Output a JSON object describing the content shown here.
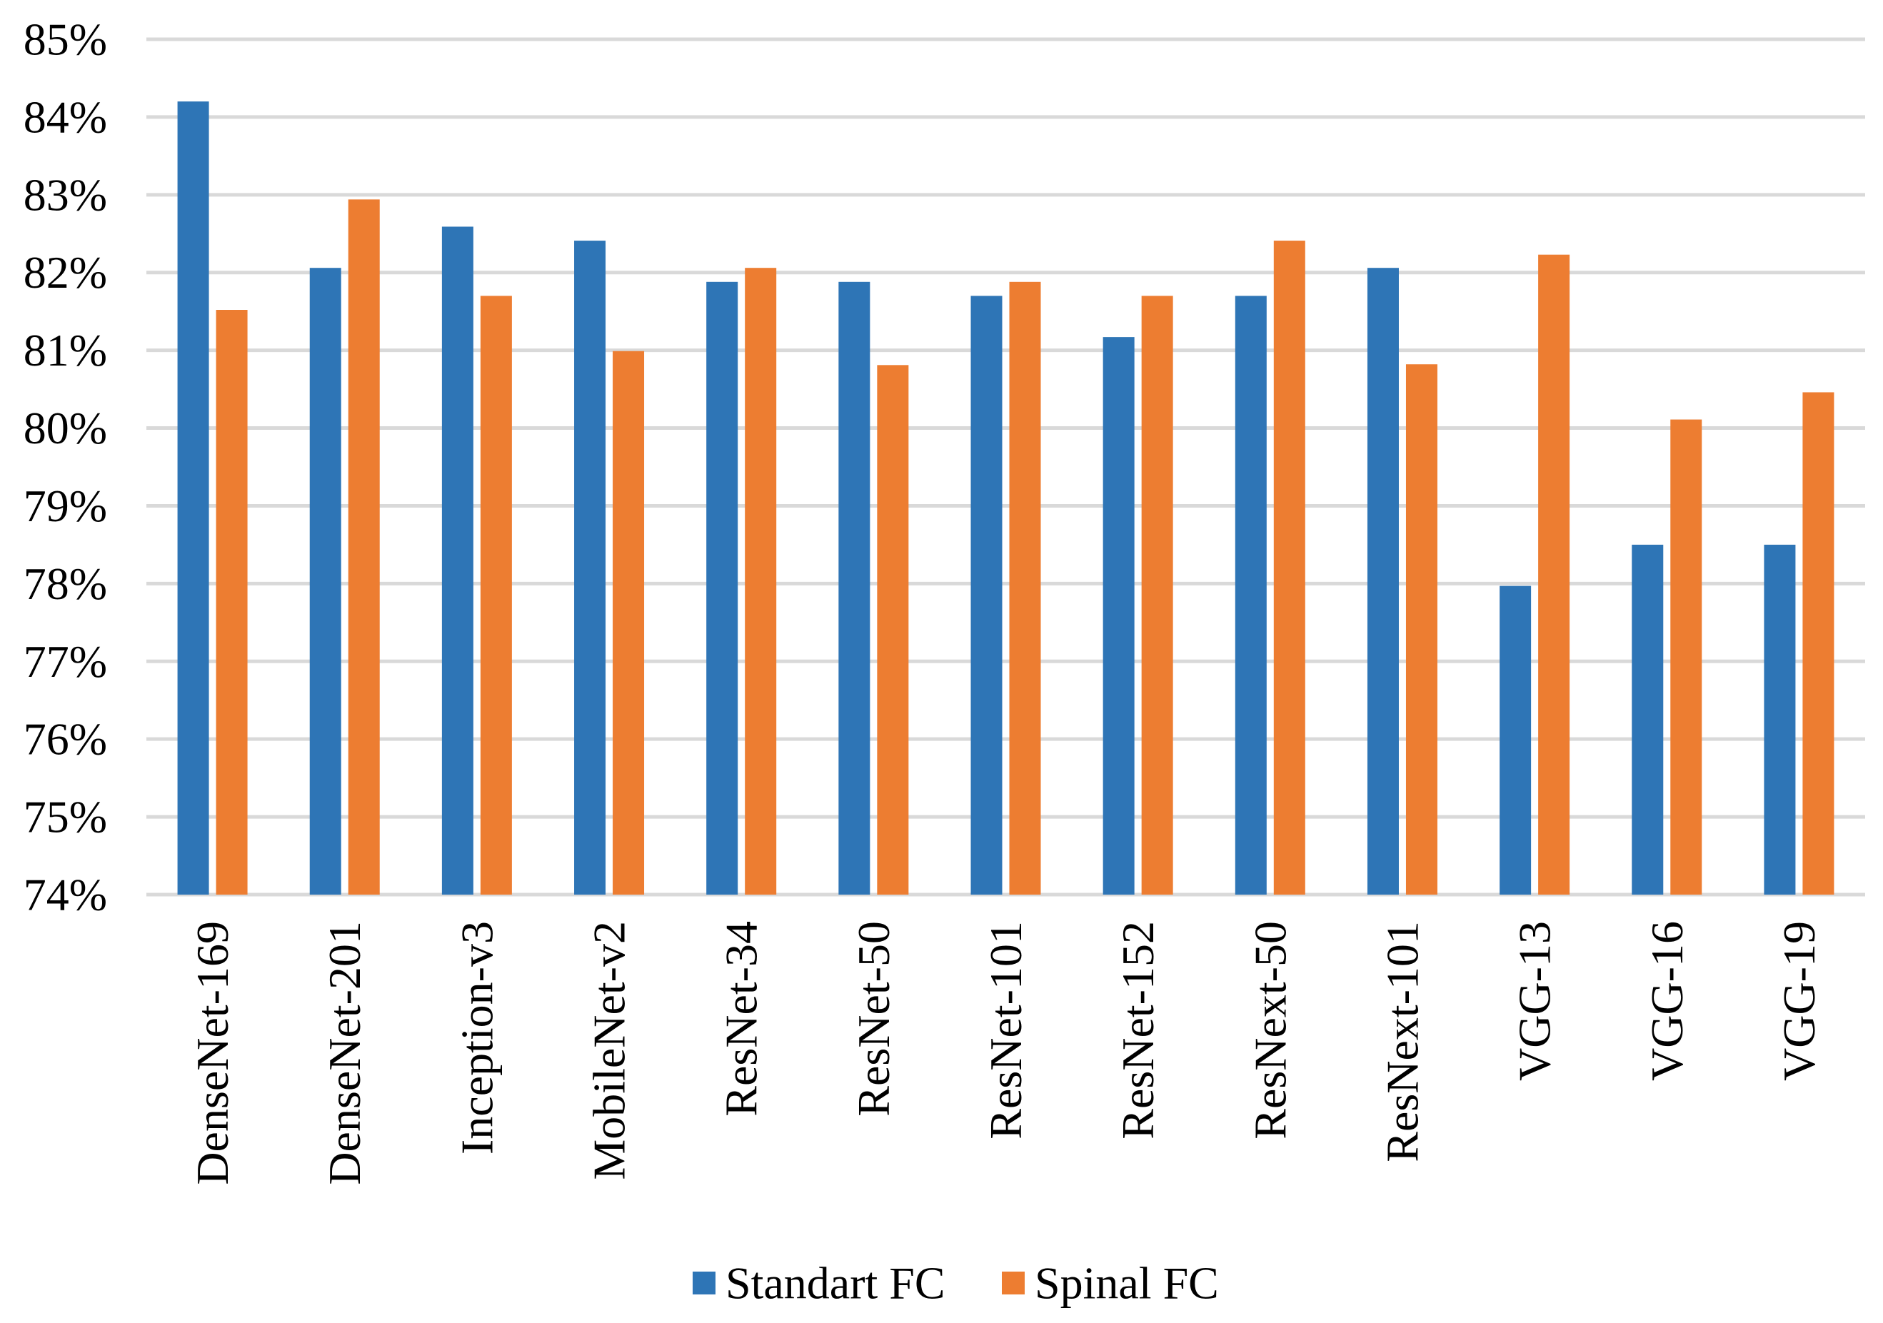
{
  "chart_data": {
    "type": "bar",
    "title": "",
    "xlabel": "",
    "ylabel": "",
    "ylim": [
      74,
      85
    ],
    "ytick_step": 1,
    "ytick_suffix": "%",
    "grid": true,
    "legend_position": "bottom",
    "categories": [
      "DenseNet-169",
      "DenseNet-201",
      "Inception-v3",
      "MobileNet-v2",
      "ResNet-34",
      "ResNet-50",
      "ResNet-101",
      "ResNet-152",
      "ResNext-50",
      "ResNext-101",
      "VGG-13",
      "VGG-16",
      "VGG-19"
    ],
    "series": [
      {
        "name": "Standart FC",
        "color": "#2E75B6",
        "values": [
          84.2,
          82.06,
          82.59,
          82.41,
          81.88,
          81.88,
          81.7,
          81.17,
          81.7,
          82.06,
          77.97,
          78.5,
          78.5
        ]
      },
      {
        "name": "Spinal FC",
        "color": "#ED7D31",
        "values": [
          81.52,
          82.94,
          81.7,
          80.99,
          82.06,
          80.81,
          81.88,
          81.7,
          82.41,
          80.82,
          82.23,
          80.11,
          80.46
        ]
      }
    ],
    "gridline_color": "#D9D9D9"
  }
}
